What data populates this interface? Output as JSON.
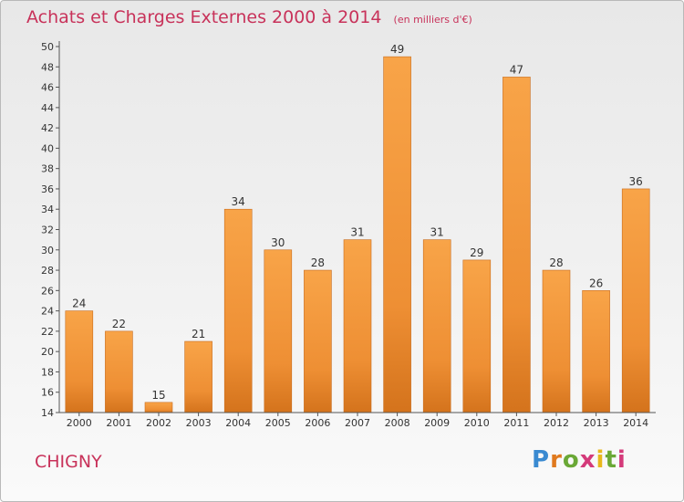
{
  "chart_data": {
    "type": "bar",
    "title": "Achats et Charges Externes 2000 à 2014",
    "subtitle": "(en milliers d'€)",
    "xlabel": "",
    "ylabel": "",
    "categories": [
      "2000",
      "2001",
      "2002",
      "2003",
      "2004",
      "2005",
      "2006",
      "2007",
      "2008",
      "2009",
      "2010",
      "2011",
      "2012",
      "2013",
      "2014"
    ],
    "values": [
      24,
      22,
      15,
      21,
      34,
      30,
      28,
      31,
      49,
      31,
      29,
      47,
      28,
      26,
      36
    ],
    "ylim": [
      14,
      50
    ],
    "yticks": [
      14,
      16,
      18,
      20,
      22,
      24,
      26,
      28,
      30,
      32,
      34,
      36,
      38,
      40,
      42,
      44,
      46,
      48,
      50
    ],
    "grid": false,
    "bar_color": "#f59a3f",
    "bar_color_dark": "#d4731c"
  },
  "footer": {
    "commune": "CHIGNY",
    "logo_text": "Proxiti"
  },
  "colors": {
    "title": "#c8325a",
    "axis": "#333333"
  }
}
